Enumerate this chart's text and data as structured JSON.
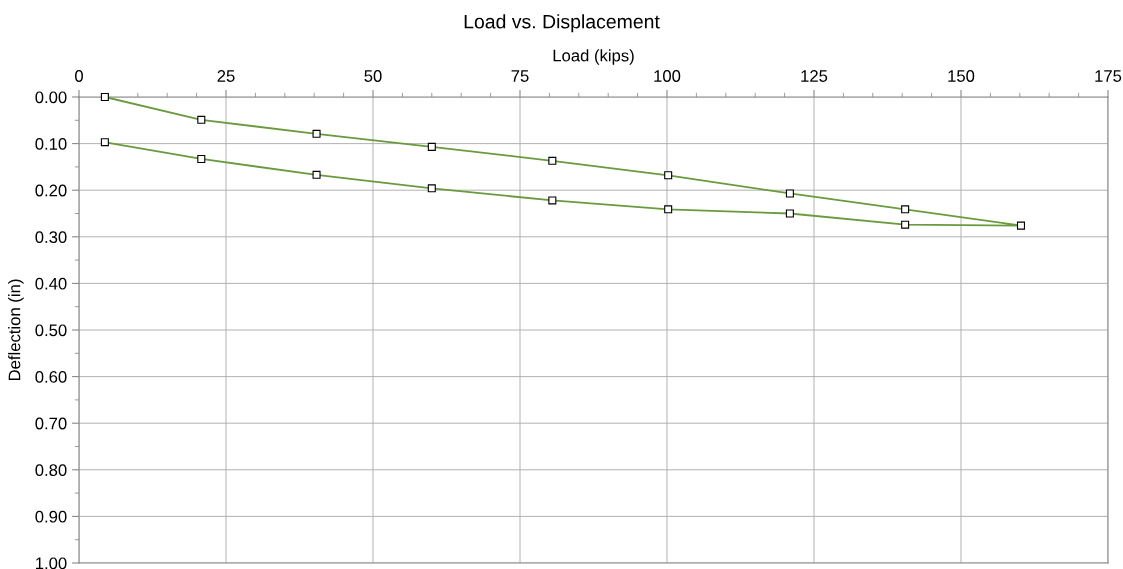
{
  "chart_data": {
    "type": "line",
    "title": "Load vs. Displacement",
    "xlabel": "Load (kips)",
    "ylabel": "Deflection (in)",
    "x": [
      4.4,
      20.8,
      40.4,
      60.0,
      80.5,
      100.2,
      120.9,
      140.5,
      160.2,
      140.5,
      120.9,
      100.2,
      80.5,
      60.0,
      40.4,
      20.8,
      4.4
    ],
    "series": [
      {
        "color": "#6a9a3e",
        "values": [
          0.0,
          0.049,
          0.079,
          0.107,
          0.137,
          0.168,
          0.207,
          0.241,
          0.276,
          0.274,
          0.25,
          0.241,
          0.222,
          0.196,
          0.167,
          0.133,
          0.097
        ]
      }
    ],
    "xlim": [
      0,
      175
    ],
    "xticks": [
      0,
      25,
      50,
      75,
      100,
      125,
      150,
      175
    ],
    "ylim": [
      1.0,
      0.0
    ],
    "yticks": [
      {
        "value": 0.0,
        "label": "0.00"
      },
      {
        "value": 0.1,
        "label": "0.10"
      },
      {
        "value": 0.2,
        "label": "0.20"
      },
      {
        "value": 0.3,
        "label": "0.30"
      },
      {
        "value": 0.4,
        "label": "0.40"
      },
      {
        "value": 0.5,
        "label": "0.50"
      },
      {
        "value": 0.6,
        "label": "0.60"
      },
      {
        "value": 0.7,
        "label": "0.70"
      },
      {
        "value": 0.8,
        "label": "0.80"
      },
      {
        "value": 0.9,
        "label": "0.90"
      },
      {
        "value": 1.0,
        "label": "1.00"
      }
    ],
    "grid": true,
    "marker": "square",
    "line_style": "solid"
  }
}
